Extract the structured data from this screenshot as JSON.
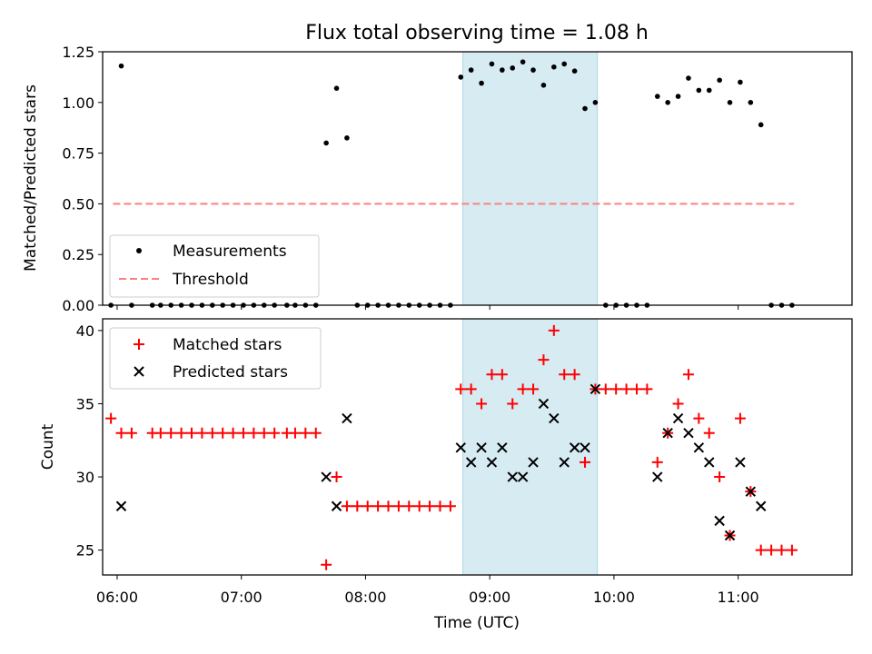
{
  "chart_data": [
    {
      "type": "scatter",
      "title": "Flux total observing time = 1.08 h",
      "xlabel": "",
      "ylabel": "Matched/Predicted stars",
      "ylim": [
        0,
        1.25
      ],
      "yticks": [
        0.0,
        0.25,
        0.5,
        0.75,
        1.0,
        1.25
      ],
      "ytick_labels": [
        "0.00",
        "0.25",
        "0.50",
        "0.75",
        "1.00",
        "1.25"
      ],
      "xlim": [
        "05:53",
        "11:55"
      ],
      "xticks": [
        "06:00",
        "07:00",
        "08:00",
        "09:00",
        "10:00",
        "11:00"
      ],
      "xtick_labels": [
        "06:00",
        "07:00",
        "08:00",
        "09:00",
        "10:00",
        "11:00"
      ],
      "grid": false,
      "legend": "lower-left",
      "shaded_interval": {
        "start": "08:47",
        "end": "09:52",
        "color": "#add8e6"
      },
      "threshold": {
        "name": "Threshold",
        "value": 0.5,
        "x_start": "05:58",
        "x_end": "11:27",
        "color": "#ff7f7f"
      },
      "series": [
        {
          "name": "Measurements",
          "color": "#000000",
          "points": [
            [
              "05:57",
              0
            ],
            [
              "06:02",
              1.18
            ],
            [
              "06:07",
              0
            ],
            [
              "06:17",
              0
            ],
            [
              "06:21",
              0
            ],
            [
              "06:26",
              0
            ],
            [
              "06:31",
              0
            ],
            [
              "06:36",
              0
            ],
            [
              "06:41",
              0
            ],
            [
              "06:46",
              0
            ],
            [
              "06:51",
              0
            ],
            [
              "06:56",
              0
            ],
            [
              "07:01",
              0
            ],
            [
              "07:06",
              0
            ],
            [
              "07:11",
              0
            ],
            [
              "07:16",
              0
            ],
            [
              "07:22",
              0
            ],
            [
              "07:26",
              0
            ],
            [
              "07:31",
              0
            ],
            [
              "07:36",
              0
            ],
            [
              "07:41",
              0.8
            ],
            [
              "07:46",
              1.07
            ],
            [
              "07:51",
              0.825
            ],
            [
              "07:56",
              0
            ],
            [
              "08:01",
              0
            ],
            [
              "08:06",
              0
            ],
            [
              "08:11",
              0
            ],
            [
              "08:16",
              0
            ],
            [
              "08:21",
              0
            ],
            [
              "08:26",
              0
            ],
            [
              "08:31",
              0
            ],
            [
              "08:36",
              0
            ],
            [
              "08:41",
              0
            ],
            [
              "08:46",
              1.125
            ],
            [
              "08:51",
              1.16
            ],
            [
              "08:56",
              1.095
            ],
            [
              "09:01",
              1.19
            ],
            [
              "09:06",
              1.16
            ],
            [
              "09:11",
              1.17
            ],
            [
              "09:16",
              1.2
            ],
            [
              "09:21",
              1.16
            ],
            [
              "09:26",
              1.085
            ],
            [
              "09:31",
              1.175
            ],
            [
              "09:36",
              1.19
            ],
            [
              "09:41",
              1.155
            ],
            [
              "09:46",
              0.97
            ],
            [
              "09:51",
              1.0
            ],
            [
              "09:56",
              0
            ],
            [
              "10:01",
              0
            ],
            [
              "10:06",
              0
            ],
            [
              "10:11",
              0
            ],
            [
              "10:16",
              0
            ],
            [
              "10:21",
              1.03
            ],
            [
              "10:26",
              1.0
            ],
            [
              "10:31",
              1.03
            ],
            [
              "10:36",
              1.12
            ],
            [
              "10:41",
              1.06
            ],
            [
              "10:46",
              1.06
            ],
            [
              "10:51",
              1.11
            ],
            [
              "10:56",
              1.0
            ],
            [
              "11:01",
              1.1
            ],
            [
              "11:06",
              1.0
            ],
            [
              "11:11",
              0.89
            ],
            [
              "11:16",
              0
            ],
            [
              "11:21",
              0
            ],
            [
              "11:26",
              0
            ]
          ]
        }
      ]
    },
    {
      "type": "scatter",
      "title": "",
      "xlabel": "Time (UTC)",
      "ylabel": "Count",
      "ylim": [
        23.3,
        40.8
      ],
      "yticks": [
        25,
        30,
        35,
        40
      ],
      "ytick_labels": [
        "25",
        "30",
        "35",
        "40"
      ],
      "xlim": [
        "05:53",
        "11:55"
      ],
      "xticks": [
        "06:00",
        "07:00",
        "08:00",
        "09:00",
        "10:00",
        "11:00"
      ],
      "xtick_labels": [
        "06:00",
        "07:00",
        "08:00",
        "09:00",
        "10:00",
        "11:00"
      ],
      "grid": false,
      "legend": "upper-left",
      "shaded_interval": {
        "start": "08:47",
        "end": "09:52",
        "color": "#add8e6"
      },
      "series": [
        {
          "name": "Matched stars",
          "marker": "plus",
          "color": "#ff0000",
          "points": [
            [
              "05:57",
              34
            ],
            [
              "06:02",
              33
            ],
            [
              "06:07",
              33
            ],
            [
              "06:17",
              33
            ],
            [
              "06:21",
              33
            ],
            [
              "06:26",
              33
            ],
            [
              "06:31",
              33
            ],
            [
              "06:36",
              33
            ],
            [
              "06:41",
              33
            ],
            [
              "06:46",
              33
            ],
            [
              "06:51",
              33
            ],
            [
              "06:56",
              33
            ],
            [
              "07:01",
              33
            ],
            [
              "07:06",
              33
            ],
            [
              "07:11",
              33
            ],
            [
              "07:16",
              33
            ],
            [
              "07:22",
              33
            ],
            [
              "07:26",
              33
            ],
            [
              "07:31",
              33
            ],
            [
              "07:36",
              33
            ],
            [
              "07:41",
              24
            ],
            [
              "07:46",
              30
            ],
            [
              "07:51",
              28
            ],
            [
              "07:56",
              28
            ],
            [
              "08:01",
              28
            ],
            [
              "08:06",
              28
            ],
            [
              "08:11",
              28
            ],
            [
              "08:16",
              28
            ],
            [
              "08:21",
              28
            ],
            [
              "08:26",
              28
            ],
            [
              "08:31",
              28
            ],
            [
              "08:36",
              28
            ],
            [
              "08:41",
              28
            ],
            [
              "08:46",
              36
            ],
            [
              "08:51",
              36
            ],
            [
              "08:56",
              35
            ],
            [
              "09:01",
              37
            ],
            [
              "09:06",
              37
            ],
            [
              "09:11",
              35
            ],
            [
              "09:16",
              36
            ],
            [
              "09:21",
              36
            ],
            [
              "09:26",
              38
            ],
            [
              "09:31",
              40
            ],
            [
              "09:36",
              37
            ],
            [
              "09:41",
              37
            ],
            [
              "09:46",
              31
            ],
            [
              "09:51",
              36
            ],
            [
              "09:56",
              36
            ],
            [
              "10:01",
              36
            ],
            [
              "10:06",
              36
            ],
            [
              "10:11",
              36
            ],
            [
              "10:16",
              36
            ],
            [
              "10:21",
              31
            ],
            [
              "10:26",
              33
            ],
            [
              "10:31",
              35
            ],
            [
              "10:36",
              37
            ],
            [
              "10:41",
              34
            ],
            [
              "10:46",
              33
            ],
            [
              "10:51",
              30
            ],
            [
              "10:56",
              26
            ],
            [
              "11:01",
              34
            ],
            [
              "11:06",
              29
            ],
            [
              "11:11",
              25
            ],
            [
              "11:16",
              25
            ],
            [
              "11:21",
              25
            ],
            [
              "11:26",
              25
            ]
          ]
        },
        {
          "name": "Predicted stars",
          "marker": "x",
          "color": "#000000",
          "points": [
            [
              "06:02",
              28
            ],
            [
              "07:41",
              30
            ],
            [
              "07:46",
              28
            ],
            [
              "07:51",
              34
            ],
            [
              "08:46",
              32
            ],
            [
              "08:51",
              31
            ],
            [
              "08:56",
              32
            ],
            [
              "09:01",
              31
            ],
            [
              "09:06",
              32
            ],
            [
              "09:11",
              30
            ],
            [
              "09:16",
              30
            ],
            [
              "09:21",
              31
            ],
            [
              "09:26",
              35
            ],
            [
              "09:31",
              34
            ],
            [
              "09:36",
              31
            ],
            [
              "09:41",
              32
            ],
            [
              "09:46",
              32
            ],
            [
              "09:51",
              36
            ],
            [
              "10:21",
              30
            ],
            [
              "10:26",
              33
            ],
            [
              "10:31",
              34
            ],
            [
              "10:36",
              33
            ],
            [
              "10:41",
              32
            ],
            [
              "10:46",
              31
            ],
            [
              "10:51",
              27
            ],
            [
              "10:56",
              26
            ],
            [
              "11:01",
              31
            ],
            [
              "11:06",
              29
            ],
            [
              "11:11",
              28
            ]
          ]
        }
      ]
    }
  ]
}
